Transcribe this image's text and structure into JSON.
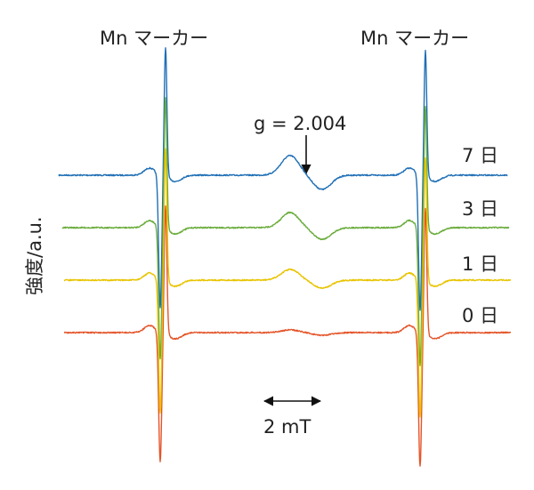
{
  "chart_data": {
    "type": "line",
    "title": "",
    "ylabel": "強度/a.u.",
    "markers": [
      "Mn マーカー",
      "Mn マーカー"
    ],
    "annotation": "g = 2.004",
    "scale_bar": "2 mT",
    "series": [
      {
        "name": "7 日",
        "color": "#1f6fb5"
      },
      {
        "name": "3 日",
        "color": "#6aac3c"
      },
      {
        "name": "1 日",
        "color": "#e8c400"
      },
      {
        "name": "0 日",
        "color": "#e4552a"
      }
    ]
  }
}
